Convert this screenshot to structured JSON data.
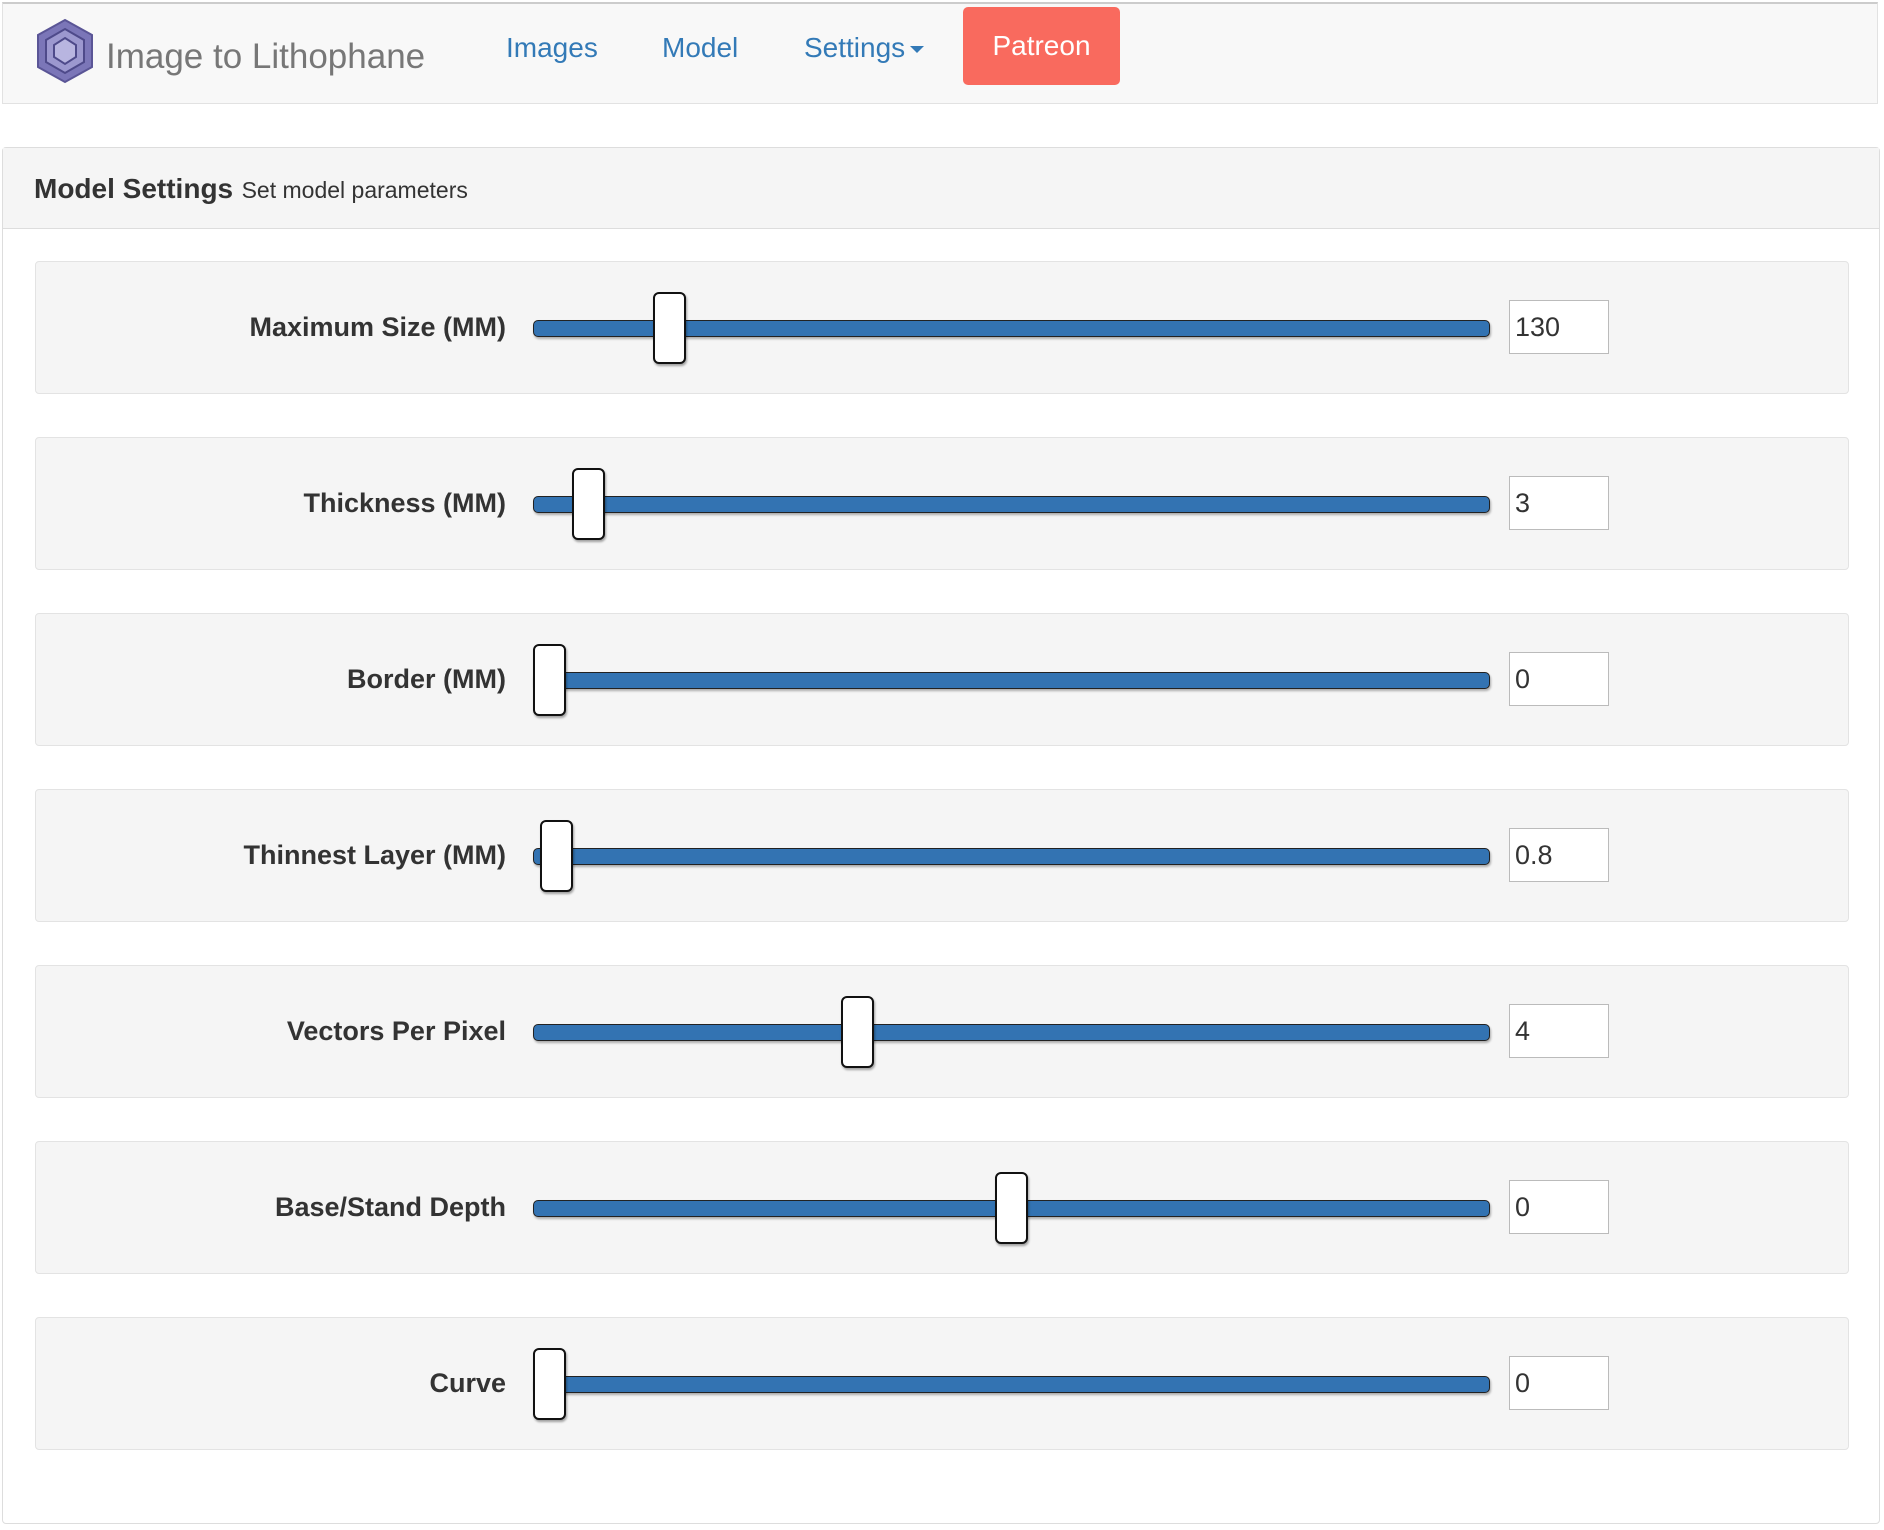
{
  "nav": {
    "brand": "Image to Lithophane",
    "links": [
      "Images",
      "Model",
      "Settings"
    ],
    "button": "Patreon"
  },
  "panel": {
    "title": "Model Settings",
    "subtitle": "Set model parameters",
    "rows": [
      {
        "label": "Maximum Size (MM)",
        "value": "130"
      },
      {
        "label": "Thickness (MM)",
        "value": "3"
      },
      {
        "label": "Border (MM)",
        "value": "0"
      },
      {
        "label": "Thinnest Layer (MM)",
        "value": "0.8"
      },
      {
        "label": "Vectors Per Pixel",
        "value": "4"
      },
      {
        "label": "Base/Stand Depth",
        "value": "0"
      },
      {
        "label": "Curve",
        "value": "0"
      }
    ]
  }
}
